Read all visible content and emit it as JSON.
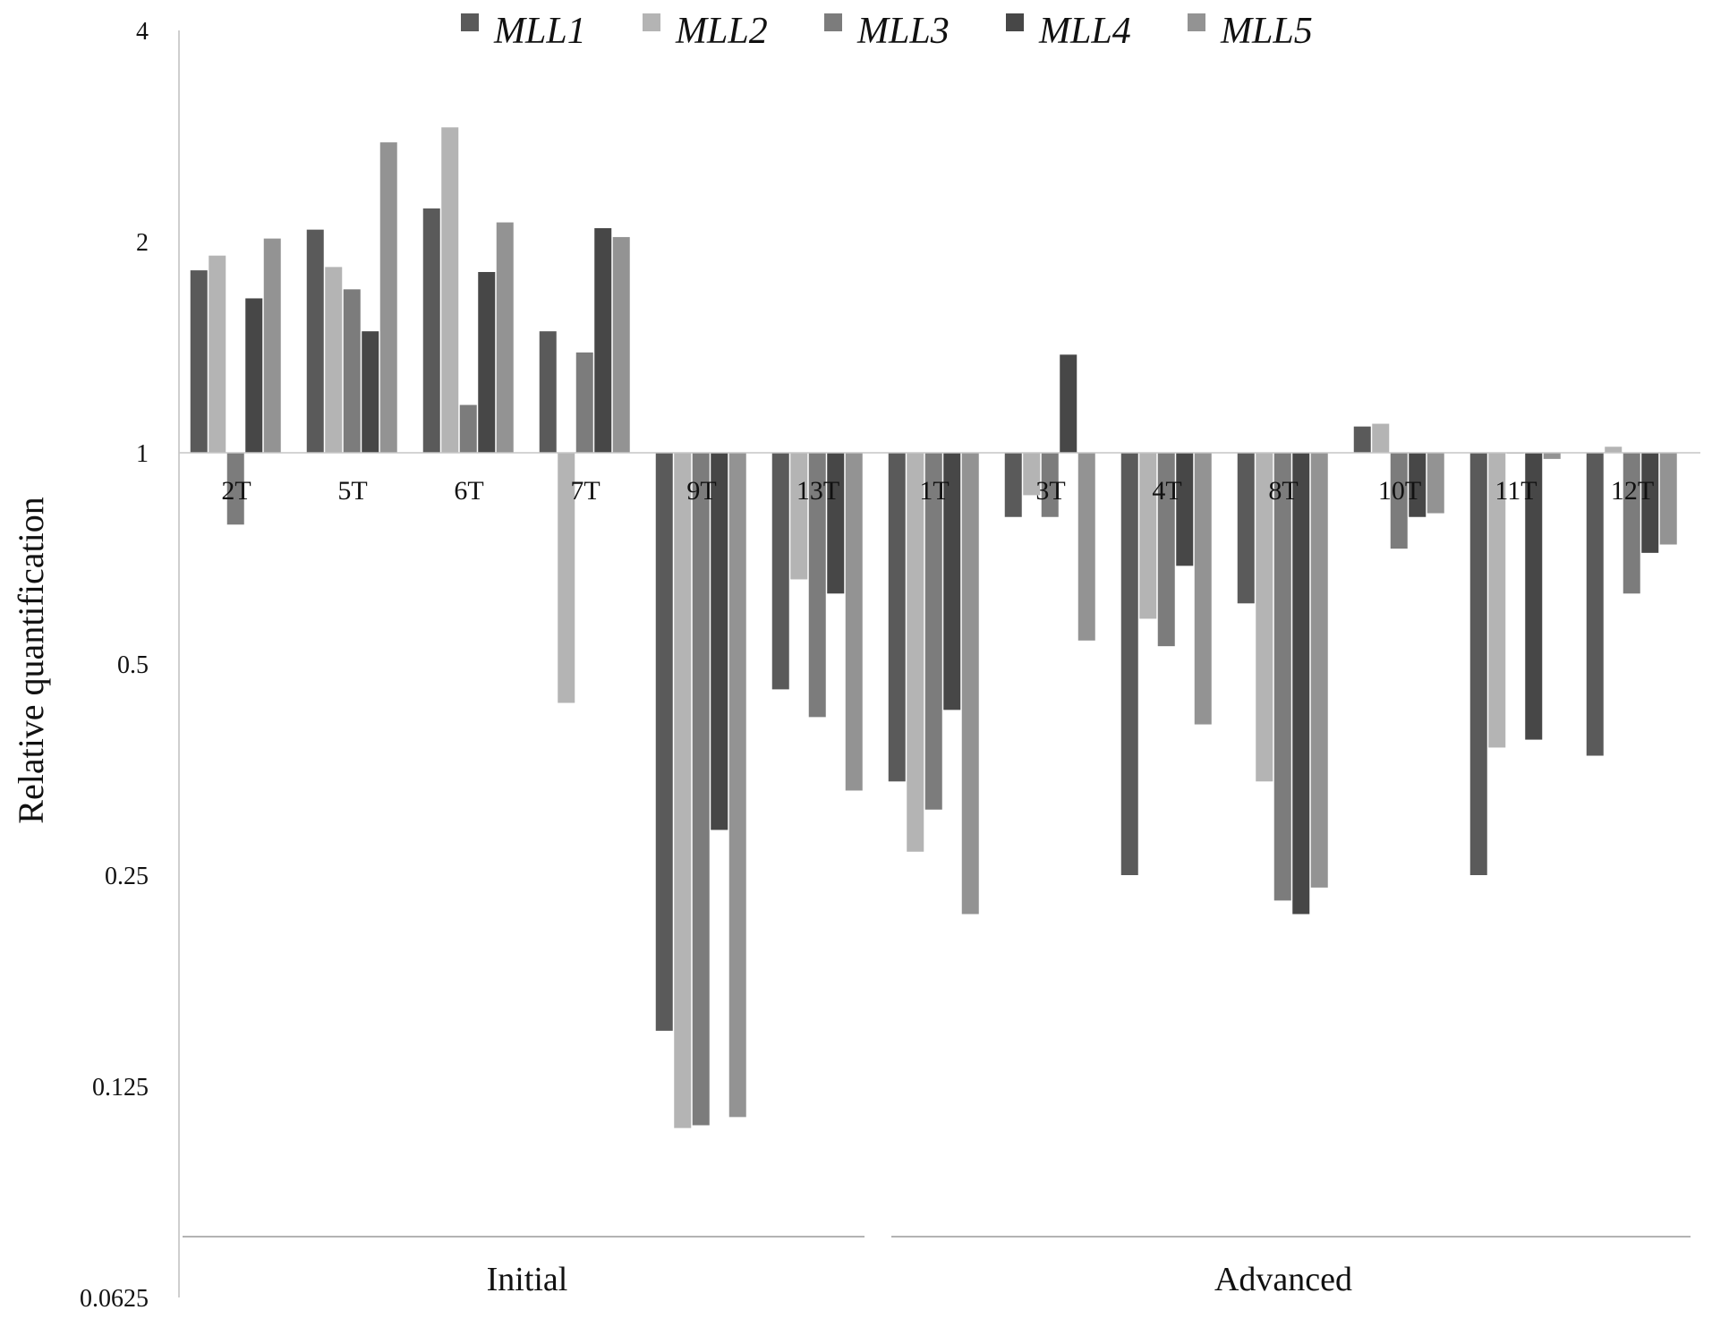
{
  "chart_data": {
    "type": "bar",
    "ylabel": "Relative quantification",
    "xlabel": "",
    "yscale": "log2",
    "ylim": [
      0.0625,
      4
    ],
    "yticks": [
      "4",
      "2",
      "1",
      "0.5",
      "0.25",
      "0.125",
      "0.0625"
    ],
    "yticks_values": [
      4,
      2,
      1,
      0.5,
      0.25,
      0.125,
      0.0625
    ],
    "baseline": 1,
    "legend_position": "top",
    "categories": [
      "2T",
      "5T",
      "6T",
      "7T",
      "9T",
      "13T",
      "1T",
      "3T",
      "4T",
      "8T",
      "10T",
      "11T",
      "12T"
    ],
    "groups": [
      {
        "label": "Initial",
        "categories": [
          "2T",
          "5T",
          "6T",
          "7T",
          "9T",
          "13T"
        ]
      },
      {
        "label": "Advanced",
        "categories": [
          "1T",
          "3T",
          "4T",
          "8T",
          "10T",
          "11T",
          "12T"
        ]
      }
    ],
    "series": [
      {
        "name": "MLL1",
        "color": "#5a5a5a",
        "values": [
          1.82,
          2.08,
          2.23,
          1.49,
          0.15,
          0.46,
          0.34,
          0.81,
          0.25,
          0.61,
          1.09,
          0.25,
          0.37
        ]
      },
      {
        "name": "MLL2",
        "color": "#b4b4b4",
        "values": [
          1.91,
          1.84,
          2.91,
          0.44,
          0.109,
          0.66,
          0.27,
          0.87,
          0.58,
          0.34,
          1.1,
          0.38,
          1.02
        ]
      },
      {
        "name": "MLL3",
        "color": "#7c7c7c",
        "values": [
          0.79,
          1.71,
          1.17,
          1.39,
          0.11,
          0.42,
          0.31,
          0.81,
          0.53,
          0.23,
          0.73,
          1.0,
          0.63
        ]
      },
      {
        "name": "MLL4",
        "color": "#474747",
        "values": [
          1.66,
          1.49,
          1.81,
          2.09,
          0.29,
          0.63,
          0.43,
          1.38,
          0.69,
          0.22,
          0.81,
          0.39,
          0.72
        ]
      },
      {
        "name": "MLL5",
        "color": "#939393",
        "values": [
          2.02,
          2.77,
          2.13,
          2.03,
          0.113,
          0.33,
          0.22,
          0.54,
          0.41,
          0.24,
          0.82,
          0.98,
          0.74
        ]
      }
    ]
  }
}
